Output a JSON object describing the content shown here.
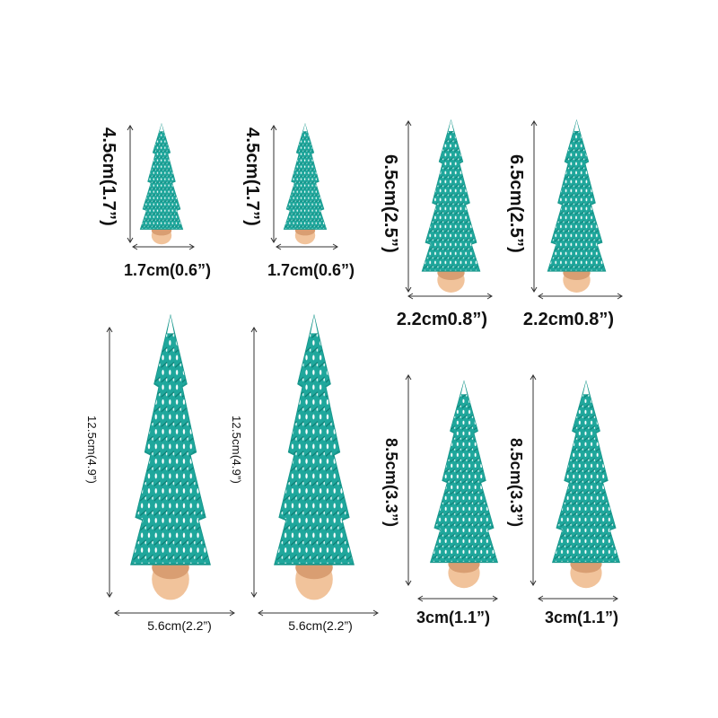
{
  "colors": {
    "foliage": "#1fa79c",
    "foliage_dark": "#0f7f76",
    "snow": "#ffffff",
    "base": "#f1c39b",
    "base_dark": "#d99e72"
  },
  "trees": [
    {
      "id": "small-1",
      "height_label": "4.5cm(1.7”)",
      "width_label": "1.7cm(0.6”)"
    },
    {
      "id": "small-2",
      "height_label": "4.5cm(1.7”)",
      "width_label": "1.7cm(0.6”)"
    },
    {
      "id": "medium-1",
      "height_label": "6.5cm(2.5”)",
      "width_label": "2.2cm0.8”)"
    },
    {
      "id": "medium-2",
      "height_label": "6.5cm(2.5”)",
      "width_label": "2.2cm0.8”)"
    },
    {
      "id": "large-1",
      "height_label": "12.5cm(4.9”)",
      "width_label": "5.6cm(2.2”)"
    },
    {
      "id": "large-2",
      "height_label": "12.5cm(4.9”)",
      "width_label": "5.6cm(2.2”)"
    },
    {
      "id": "tall-1",
      "height_label": "8.5cm(3.3”)",
      "width_label": "3cm(1.1”)"
    },
    {
      "id": "tall-2",
      "height_label": "8.5cm(3.3”)",
      "width_label": "3cm(1.1”)"
    }
  ]
}
